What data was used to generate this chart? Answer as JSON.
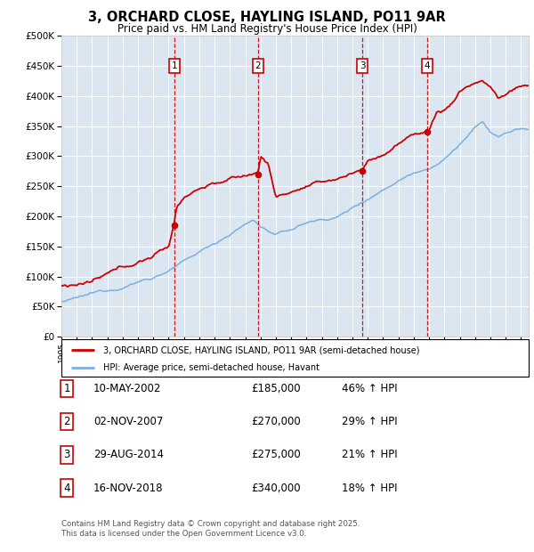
{
  "title": "3, ORCHARD CLOSE, HAYLING ISLAND, PO11 9AR",
  "subtitle": "Price paid vs. HM Land Registry's House Price Index (HPI)",
  "ylim": [
    0,
    500000
  ],
  "yticks": [
    0,
    50000,
    100000,
    150000,
    200000,
    250000,
    300000,
    350000,
    400000,
    450000,
    500000
  ],
  "xlim_start": 1995.0,
  "xlim_end": 2025.5,
  "background_color": "#ffffff",
  "plot_bg_color": "#dce6f1",
  "grid_color": "#ffffff",
  "transactions": [
    {
      "num": 1,
      "date_x": 2002.36,
      "price": 185000,
      "label": "10-MAY-2002",
      "pct": "46%"
    },
    {
      "num": 2,
      "date_x": 2007.84,
      "price": 270000,
      "label": "02-NOV-2007",
      "pct": "29%"
    },
    {
      "num": 3,
      "date_x": 2014.66,
      "price": 275000,
      "label": "29-AUG-2014",
      "pct": "21%"
    },
    {
      "num": 4,
      "date_x": 2018.88,
      "price": 340000,
      "label": "16-NOV-2018",
      "pct": "18%"
    }
  ],
  "legend_line1": "3, ORCHARD CLOSE, HAYLING ISLAND, PO11 9AR (semi-detached house)",
  "legend_line2": "HPI: Average price, semi-detached house, Havant",
  "footer1": "Contains HM Land Registry data © Crown copyright and database right 2025.",
  "footer2": "This data is licensed under the Open Government Licence v3.0.",
  "red_color": "#cc0000",
  "blue_color": "#7aafe0",
  "dashed_color": "#cc0000"
}
